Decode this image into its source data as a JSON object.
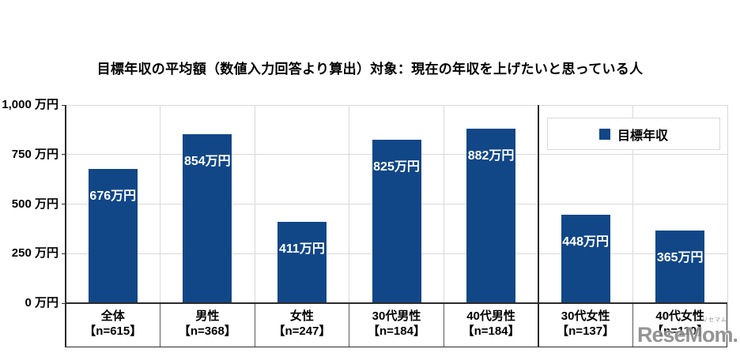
{
  "page": {
    "background": "#ffffff"
  },
  "chart_data": {
    "type": "bar",
    "title": "目標年収の平均額（数値入力回答より算出）対象：現在の年収を上げたいと思っている人",
    "legend": {
      "label": "目標年収",
      "position": "top-right"
    },
    "unit": "万円",
    "categories": [
      {
        "name": "全体",
        "n_label": "【n=615】"
      },
      {
        "name": "男性",
        "n_label": "【n=368】"
      },
      {
        "name": "女性",
        "n_label": "【n=247】"
      },
      {
        "name": "30代男性",
        "n_label": "【n=184】"
      },
      {
        "name": "40代男性",
        "n_label": "【n=184】"
      },
      {
        "name": "30代女性",
        "n_label": "【n=137】"
      },
      {
        "name": "40代女性",
        "n_label": "【n=110】"
      }
    ],
    "series": [
      {
        "name": "目標年収",
        "values": [
          676,
          854,
          411,
          825,
          882,
          448,
          365
        ],
        "value_labels": [
          "676万円",
          "854万円",
          "411万円",
          "825万円",
          "882万円",
          "448万円",
          "365万円"
        ]
      }
    ],
    "ylim": [
      0,
      1000
    ],
    "y_ticks": [
      {
        "value": 1000,
        "label": "1,000 万円"
      },
      {
        "value": 750,
        "label": "750 万円"
      },
      {
        "value": 500,
        "label": "500 万円"
      },
      {
        "value": 250,
        "label": "250 万円"
      },
      {
        "value": 0,
        "label": "0 万円"
      }
    ],
    "grid": true,
    "group_divider_after_category": 5,
    "colors": {
      "bar": "#114787",
      "grid": "#d9d9d9",
      "axis": "#2b2b2b",
      "cell_divider": "#595959",
      "value_label_text": "#ffffff"
    }
  },
  "watermark": {
    "text": "ReseMom.",
    "ruby": "リセマム"
  }
}
